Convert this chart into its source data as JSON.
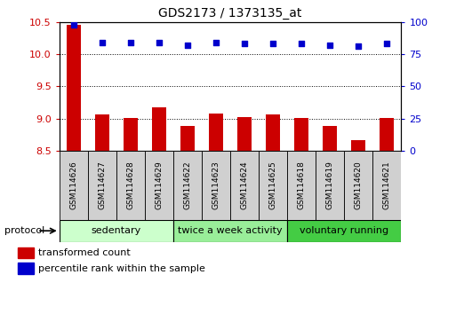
{
  "title": "GDS2173 / 1373135_at",
  "samples": [
    "GSM114626",
    "GSM114627",
    "GSM114628",
    "GSM114629",
    "GSM114622",
    "GSM114623",
    "GSM114624",
    "GSM114625",
    "GSM114618",
    "GSM114619",
    "GSM114620",
    "GSM114621"
  ],
  "transformed_count": [
    10.46,
    9.07,
    9.01,
    9.18,
    8.88,
    9.08,
    9.02,
    9.06,
    9.01,
    8.88,
    8.67,
    9.01
  ],
  "percentile_rank": [
    98,
    84,
    84,
    84,
    82,
    84,
    83,
    83,
    83,
    82,
    81,
    83
  ],
  "groups": [
    {
      "label": "sedentary",
      "start": 0,
      "end": 4,
      "color": "#ccffcc"
    },
    {
      "label": "twice a week activity",
      "start": 4,
      "end": 8,
      "color": "#99ee99"
    },
    {
      "label": "voluntary running",
      "start": 8,
      "end": 12,
      "color": "#44cc44"
    }
  ],
  "ylim_left": [
    8.5,
    10.5
  ],
  "ylim_right": [
    0,
    100
  ],
  "yticks_left": [
    8.5,
    9.0,
    9.5,
    10.0,
    10.5
  ],
  "yticks_right": [
    0,
    25,
    50,
    75,
    100
  ],
  "bar_color": "#cc0000",
  "dot_color": "#0000cc",
  "background_color": "#ffffff",
  "legend_red_label": "transformed count",
  "legend_blue_label": "percentile rank within the sample",
  "protocol_label": "protocol"
}
